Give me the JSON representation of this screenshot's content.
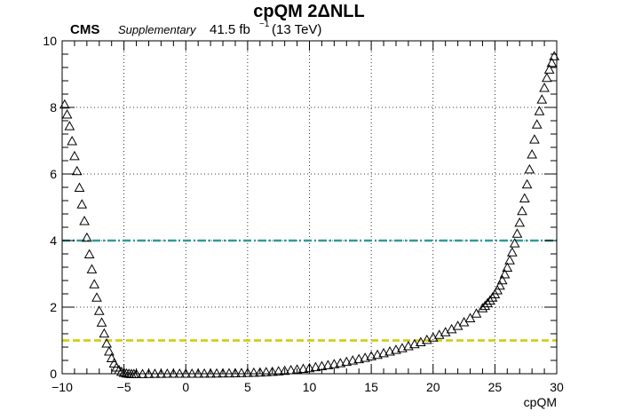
{
  "chart_data": {
    "type": "scatter",
    "title": "cpQM 2ΔNLL",
    "xlabel": "cpQM",
    "ylabel": "",
    "xlim": [
      -10,
      30
    ],
    "ylim": [
      0,
      10
    ],
    "x_ticks": [
      -10,
      -5,
      0,
      5,
      10,
      15,
      20,
      25,
      30
    ],
    "x_tick_labels": [
      "−10",
      "−5",
      "0",
      "5",
      "10",
      "15",
      "20",
      "25",
      "30"
    ],
    "y_ticks": [
      0,
      2,
      4,
      6,
      8,
      10
    ],
    "y_tick_labels": [
      "0",
      "2",
      "4",
      "6",
      "8",
      "10"
    ],
    "grid": true,
    "marker": "open-triangle",
    "labels": {
      "experiment": "CMS",
      "status": "Supplementary",
      "luminosity": "41.5 fb",
      "lumi_exponent": "−1",
      "energy": "(13 TeV)"
    },
    "reference_lines": [
      {
        "y": 1,
        "color": "#cccc00",
        "style": "dashed"
      },
      {
        "y": 4,
        "color": "#339999",
        "style": "dash-dot"
      }
    ],
    "series": [
      {
        "x": [
          -9.8,
          -9.6,
          -9.4,
          -9.2,
          -9.0,
          -8.8,
          -8.6,
          -8.4,
          -8.2,
          -8.0,
          -7.8,
          -7.6,
          -7.4,
          -7.2,
          -7.0,
          -6.8,
          -6.6,
          -6.4,
          -6.2,
          -6.0,
          -5.8,
          -5.6,
          -5.4,
          -5.2,
          -5.0,
          -4.8,
          -4.6,
          -4.4,
          -4.2,
          -4.0,
          -3.5,
          -3.0,
          -2.5,
          -2.0,
          -1.5,
          -1.0,
          -0.5,
          0,
          0.5,
          1,
          1.5,
          2,
          2.5,
          3,
          3.5,
          4,
          4.5,
          5,
          5.5,
          6,
          6.5,
          7,
          7.5,
          8,
          8.5,
          9,
          9.5,
          10,
          10.5,
          11,
          11.5,
          12,
          12.5,
          13,
          13.5,
          14,
          14.5,
          15,
          15.5,
          16,
          16.5,
          17,
          17.5,
          18,
          18.5,
          19,
          19.5,
          20,
          20.5,
          21,
          21.5,
          22,
          22.5,
          23,
          23.5,
          24,
          24.2,
          24.4,
          24.6,
          24.8,
          25,
          25.2,
          25.4,
          25.6,
          25.8,
          26,
          26.2,
          26.4,
          26.6,
          26.8,
          27,
          27.2,
          27.4,
          27.6,
          27.8,
          28,
          28.2,
          28.4,
          28.6,
          28.8,
          29,
          29.2,
          29.4,
          29.6,
          29.8
        ],
        "y": [
          8.1,
          7.8,
          7.45,
          7.0,
          6.55,
          6.1,
          5.6,
          5.1,
          4.6,
          4.1,
          3.6,
          3.15,
          2.7,
          2.3,
          1.9,
          1.55,
          1.22,
          0.92,
          0.68,
          0.48,
          0.32,
          0.2,
          0.12,
          0.07,
          0.04,
          0.02,
          0.01,
          0.005,
          0.003,
          0.002,
          0.004,
          0.008,
          0.01,
          0.01,
          0.012,
          0.012,
          0.012,
          0.013,
          0.014,
          0.015,
          0.017,
          0.018,
          0.02,
          0.022,
          0.025,
          0.028,
          0.032,
          0.036,
          0.042,
          0.05,
          0.06,
          0.07,
          0.085,
          0.1,
          0.12,
          0.14,
          0.16,
          0.18,
          0.21,
          0.24,
          0.27,
          0.3,
          0.33,
          0.37,
          0.41,
          0.45,
          0.49,
          0.54,
          0.58,
          0.63,
          0.68,
          0.73,
          0.78,
          0.84,
          0.9,
          0.96,
          1.03,
          1.1,
          1.18,
          1.26,
          1.35,
          1.45,
          1.56,
          1.68,
          1.82,
          1.98,
          2.05,
          2.13,
          2.21,
          2.3,
          2.4,
          2.52,
          2.66,
          2.82,
          3.0,
          3.2,
          3.42,
          3.66,
          3.93,
          4.22,
          4.55,
          4.9,
          5.28,
          5.7,
          6.15,
          6.6,
          7.05,
          7.5,
          7.9,
          8.25,
          8.6,
          8.9,
          9.15,
          9.35,
          9.55
        ]
      }
    ]
  }
}
